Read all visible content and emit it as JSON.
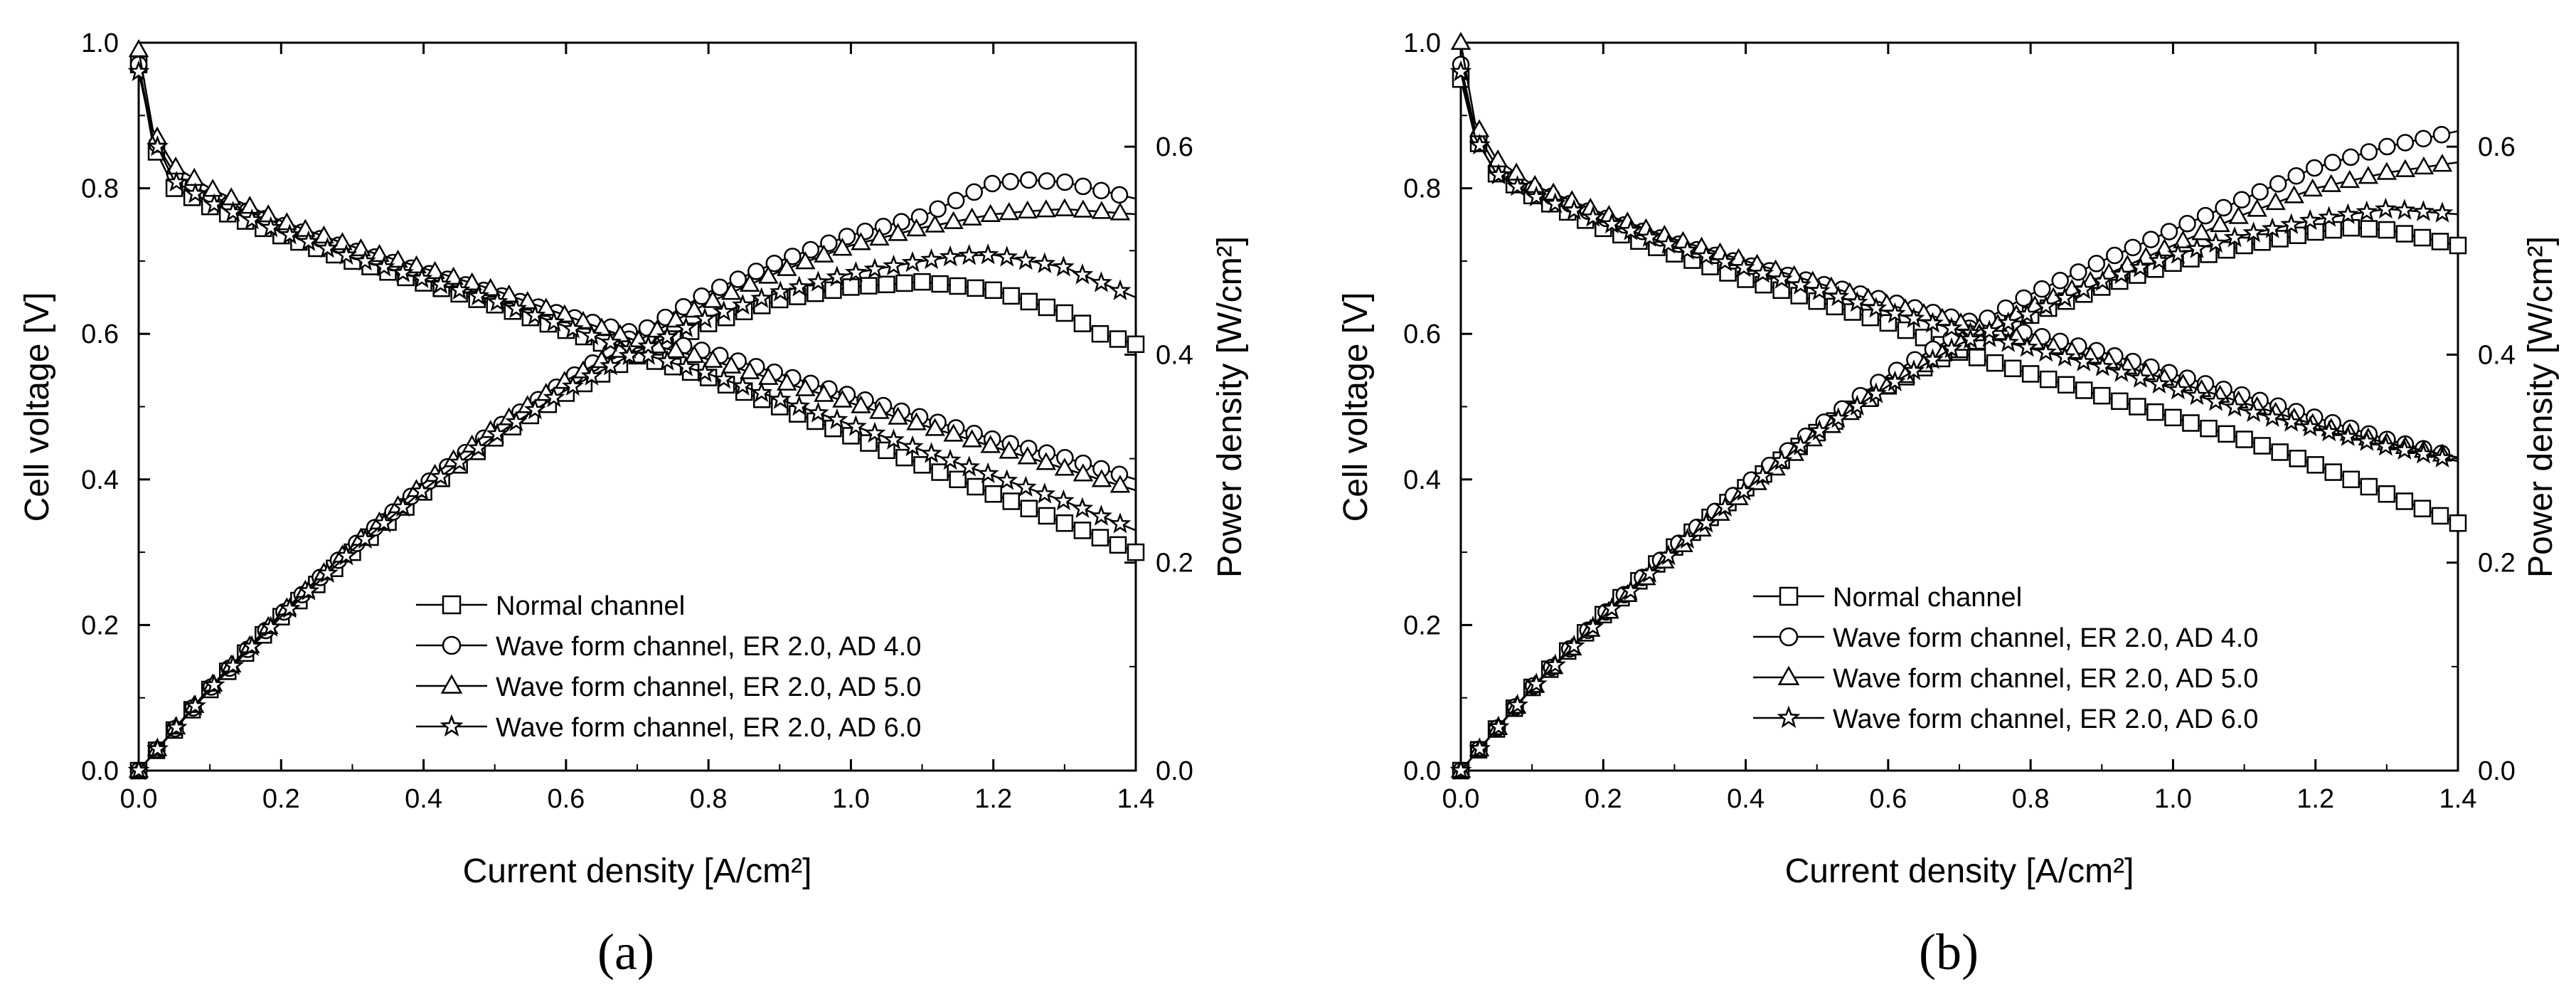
{
  "figure": {
    "background": "#ffffff",
    "ink": "#000000"
  },
  "chart_data": [
    {
      "type": "line",
      "panel": "a",
      "panel_label": "(a)",
      "xlabel": "Current density [A/cm²]",
      "ylabel": "Cell voltage [V]",
      "y2label": "Power density [W/cm²]",
      "xlim": [
        0.0,
        1.4
      ],
      "ylim": [
        0.0,
        1.0
      ],
      "y2lim": [
        0.0,
        0.7
      ],
      "xticks": [
        "0.0",
        "0.2",
        "0.4",
        "0.6",
        "0.8",
        "1.0",
        "1.2",
        "1.4"
      ],
      "yticks": [
        "0.0",
        "0.2",
        "0.4",
        "0.6",
        "0.8",
        "1.0"
      ],
      "y2ticks": [
        "0.0",
        "0.2",
        "0.4",
        "0.6"
      ],
      "legend_position": "lower-center",
      "series": [
        {
          "name": "Normal channel",
          "marker": "square",
          "voltage": {
            "x": [
              0.0,
              0.02,
              0.05,
              0.1,
              0.2,
              0.3,
              0.4,
              0.5,
              0.6,
              0.7,
              0.8,
              0.9,
              1.0,
              1.1,
              1.2,
              1.3,
              1.4
            ],
            "y": [
              0.97,
              0.86,
              0.8,
              0.775,
              0.735,
              0.7,
              0.67,
              0.64,
              0.605,
              0.57,
              0.54,
              0.5,
              0.46,
              0.42,
              0.38,
              0.34,
              0.3
            ]
          },
          "power": {
            "x": [
              0.0,
              0.1,
              0.2,
              0.3,
              0.4,
              0.5,
              0.6,
              0.7,
              0.8,
              0.9,
              1.0,
              1.1,
              1.2,
              1.3,
              1.35,
              1.4
            ],
            "y": [
              0.0,
              0.078,
              0.148,
              0.21,
              0.268,
              0.32,
              0.363,
              0.4,
              0.43,
              0.453,
              0.465,
              0.47,
              0.462,
              0.44,
              0.42,
              0.41
            ]
          }
        },
        {
          "name": "Wave form channel, ER 2.0, AD 4.0",
          "marker": "circle",
          "voltage": {
            "x": [
              0.0,
              0.02,
              0.05,
              0.1,
              0.2,
              0.3,
              0.4,
              0.5,
              0.6,
              0.7,
              0.8,
              0.9,
              1.0,
              1.1,
              1.2,
              1.3,
              1.4
            ],
            "y": [
              0.97,
              0.87,
              0.82,
              0.79,
              0.75,
              0.715,
              0.685,
              0.655,
              0.625,
              0.6,
              0.575,
              0.545,
              0.515,
              0.485,
              0.455,
              0.43,
              0.4
            ]
          },
          "power": {
            "x": [
              0.0,
              0.1,
              0.2,
              0.3,
              0.4,
              0.5,
              0.6,
              0.7,
              0.8,
              0.9,
              1.0,
              1.1,
              1.2,
              1.25,
              1.3,
              1.4
            ],
            "y": [
              0.0,
              0.079,
              0.15,
              0.215,
              0.274,
              0.328,
              0.375,
              0.42,
              0.46,
              0.49,
              0.515,
              0.533,
              0.565,
              0.568,
              0.566,
              0.55
            ]
          }
        },
        {
          "name": "Wave form channel, ER 2.0, AD 5.0",
          "marker": "triangle",
          "voltage": {
            "x": [
              0.0,
              0.02,
              0.05,
              0.1,
              0.2,
              0.3,
              0.4,
              0.5,
              0.6,
              0.7,
              0.8,
              0.9,
              1.0,
              1.1,
              1.2,
              1.3,
              1.4
            ],
            "y": [
              0.99,
              0.88,
              0.83,
              0.8,
              0.755,
              0.72,
              0.69,
              0.66,
              0.625,
              0.59,
              0.565,
              0.535,
              0.505,
              0.475,
              0.445,
              0.415,
              0.385
            ]
          },
          "power": {
            "x": [
              0.0,
              0.1,
              0.2,
              0.3,
              0.4,
              0.5,
              0.6,
              0.7,
              0.8,
              0.9,
              1.0,
              1.1,
              1.2,
              1.25,
              1.3,
              1.4
            ],
            "y": [
              0.0,
              0.08,
              0.151,
              0.216,
              0.276,
              0.33,
              0.375,
              0.413,
              0.45,
              0.48,
              0.505,
              0.522,
              0.535,
              0.538,
              0.54,
              0.535
            ]
          }
        },
        {
          "name": "Wave form channel, ER 2.0, AD 6.0",
          "marker": "star",
          "voltage": {
            "x": [
              0.0,
              0.02,
              0.05,
              0.1,
              0.2,
              0.3,
              0.4,
              0.5,
              0.6,
              0.7,
              0.8,
              0.9,
              1.0,
              1.1,
              1.2,
              1.3,
              1.4
            ],
            "y": [
              0.96,
              0.87,
              0.81,
              0.78,
              0.74,
              0.705,
              0.675,
              0.645,
              0.61,
              0.575,
              0.545,
              0.51,
              0.475,
              0.44,
              0.405,
              0.37,
              0.33
            ]
          },
          "power": {
            "x": [
              0.0,
              0.1,
              0.2,
              0.3,
              0.4,
              0.5,
              0.6,
              0.7,
              0.8,
              0.9,
              1.0,
              1.1,
              1.15,
              1.2,
              1.3,
              1.4
            ],
            "y": [
              0.0,
              0.078,
              0.148,
              0.212,
              0.27,
              0.322,
              0.366,
              0.403,
              0.436,
              0.46,
              0.478,
              0.49,
              0.495,
              0.496,
              0.484,
              0.455
            ]
          }
        }
      ]
    },
    {
      "type": "line",
      "panel": "b",
      "panel_label": "(b)",
      "xlabel": "Current density [A/cm²]",
      "ylabel": "Cell voltage [V]",
      "y2label": "Power density [W/cm²]",
      "xlim": [
        0.0,
        1.4
      ],
      "ylim": [
        0.0,
        1.0
      ],
      "y2lim": [
        0.0,
        0.7
      ],
      "xticks": [
        "0.0",
        "0.2",
        "0.4",
        "0.6",
        "0.8",
        "1.0",
        "1.2",
        "1.4"
      ],
      "yticks": [
        "0.0",
        "0.2",
        "0.4",
        "0.6",
        "0.8",
        "1.0"
      ],
      "y2ticks": [
        "0.0",
        "0.2",
        "0.4",
        "0.6"
      ],
      "legend_position": "lower-center",
      "series": [
        {
          "name": "Normal channel",
          "marker": "square",
          "voltage": {
            "x": [
              0.0,
              0.02,
              0.05,
              0.1,
              0.2,
              0.3,
              0.4,
              0.5,
              0.6,
              0.7,
              0.8,
              0.9,
              1.0,
              1.1,
              1.2,
              1.3,
              1.4
            ],
            "y": [
              0.95,
              0.87,
              0.82,
              0.79,
              0.745,
              0.71,
              0.675,
              0.645,
              0.615,
              0.575,
              0.545,
              0.515,
              0.485,
              0.455,
              0.42,
              0.38,
              0.34
            ]
          },
          "power": {
            "x": [
              0.0,
              0.1,
              0.2,
              0.3,
              0.4,
              0.5,
              0.6,
              0.7,
              0.8,
              0.9,
              1.0,
              1.1,
              1.2,
              1.25,
              1.3,
              1.4
            ],
            "y": [
              0.0,
              0.08,
              0.15,
              0.215,
              0.272,
              0.325,
              0.37,
              0.405,
              0.438,
              0.465,
              0.488,
              0.505,
              0.518,
              0.522,
              0.52,
              0.505
            ]
          }
        },
        {
          "name": "Wave form channel, ER 2.0, AD 4.0",
          "marker": "circle",
          "voltage": {
            "x": [
              0.0,
              0.02,
              0.05,
              0.1,
              0.2,
              0.3,
              0.4,
              0.5,
              0.6,
              0.7,
              0.8,
              0.9,
              1.0,
              1.1,
              1.2,
              1.3,
              1.4
            ],
            "y": [
              0.97,
              0.88,
              0.83,
              0.8,
              0.76,
              0.725,
              0.695,
              0.67,
              0.645,
              0.62,
              0.6,
              0.575,
              0.545,
              0.515,
              0.485,
              0.455,
              0.43
            ]
          },
          "power": {
            "x": [
              0.0,
              0.1,
              0.2,
              0.3,
              0.4,
              0.5,
              0.6,
              0.7,
              0.8,
              0.9,
              1.0,
              1.1,
              1.2,
              1.3,
              1.4
            ],
            "y": [
              0.0,
              0.08,
              0.15,
              0.215,
              0.275,
              0.33,
              0.38,
              0.42,
              0.458,
              0.49,
              0.52,
              0.55,
              0.58,
              0.6,
              0.615
            ]
          }
        },
        {
          "name": "Wave form channel, ER 2.0, AD 5.0",
          "marker": "triangle",
          "voltage": {
            "x": [
              0.0,
              0.02,
              0.05,
              0.1,
              0.2,
              0.3,
              0.4,
              0.5,
              0.6,
              0.7,
              0.8,
              0.9,
              1.0,
              1.1,
              1.2,
              1.3,
              1.4
            ],
            "y": [
              1.0,
              0.89,
              0.84,
              0.805,
              0.765,
              0.73,
              0.7,
              0.67,
              0.64,
              0.615,
              0.59,
              0.565,
              0.535,
              0.505,
              0.475,
              0.45,
              0.43
            ]
          },
          "power": {
            "x": [
              0.0,
              0.1,
              0.2,
              0.3,
              0.4,
              0.5,
              0.6,
              0.7,
              0.8,
              0.9,
              1.0,
              1.1,
              1.2,
              1.3,
              1.4
            ],
            "y": [
              0.0,
              0.079,
              0.148,
              0.21,
              0.268,
              0.322,
              0.37,
              0.41,
              0.445,
              0.475,
              0.505,
              0.535,
              0.56,
              0.575,
              0.585
            ]
          }
        },
        {
          "name": "Wave form channel, ER 2.0, AD 6.0",
          "marker": "star",
          "voltage": {
            "x": [
              0.0,
              0.02,
              0.05,
              0.1,
              0.2,
              0.3,
              0.4,
              0.5,
              0.6,
              0.7,
              0.8,
              0.9,
              1.0,
              1.1,
              1.2,
              1.3,
              1.4
            ],
            "y": [
              0.96,
              0.87,
              0.82,
              0.79,
              0.755,
              0.72,
              0.69,
              0.66,
              0.63,
              0.605,
              0.58,
              0.555,
              0.525,
              0.495,
              0.47,
              0.445,
              0.425
            ]
          },
          "power": {
            "x": [
              0.0,
              0.1,
              0.2,
              0.3,
              0.4,
              0.5,
              0.6,
              0.7,
              0.8,
              0.9,
              1.0,
              1.1,
              1.2,
              1.3,
              1.4
            ],
            "y": [
              0.0,
              0.079,
              0.148,
              0.212,
              0.27,
              0.325,
              0.37,
              0.41,
              0.44,
              0.47,
              0.495,
              0.515,
              0.53,
              0.54,
              0.535
            ]
          }
        }
      ]
    }
  ]
}
